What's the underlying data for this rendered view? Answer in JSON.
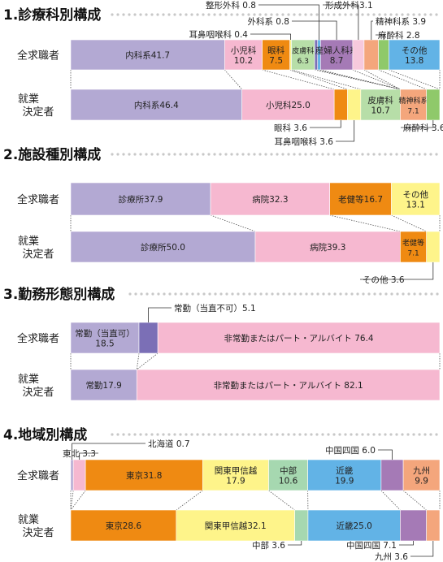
{
  "row_labels": {
    "applicants": "全求職者",
    "placed_line1": "就業",
    "placed_line2": "決定者"
  },
  "colors": {
    "lavender": "#b3a9d3",
    "pink": "#f6b8d0",
    "orange": "#ef8a12",
    "lightgreen": "#b7dea8",
    "purple": "#a57ab6",
    "salmon": "#f4a67c",
    "green": "#8fc96a",
    "blue": "#62b3e6",
    "yellow": "#fef48a",
    "darkpurple": "#7b6fb6",
    "lightpink": "#f7c9dc",
    "tealgreen": "#a6d8b0"
  },
  "chart_data": [
    {
      "type": "stacked-bar",
      "title": "1.診療科別構成",
      "rows": [
        "全求職者",
        "就業決定者"
      ],
      "series": [
        {
          "name": "内科系",
          "values": [
            41.7,
            46.4
          ],
          "color": "#b3a9d3"
        },
        {
          "name": "小児科",
          "values": [
            10.2,
            25.0
          ],
          "color": "#f6b8d0"
        },
        {
          "name": "眼科",
          "values": [
            7.5,
            3.6
          ],
          "color": "#ef8a12"
        },
        {
          "name": "耳鼻咽喉科",
          "values": [
            0.4,
            3.6
          ],
          "color": "#fef48a"
        },
        {
          "name": "皮膚科",
          "values": [
            6.3,
            10.7
          ],
          "color": "#b7dea8"
        },
        {
          "name": "整形外科",
          "values": [
            0.8,
            0
          ],
          "color": "#7b6fb6"
        },
        {
          "name": "外科系",
          "values": [
            0.8,
            0
          ],
          "color": "#62b3e6"
        },
        {
          "name": "産婦人科系",
          "values": [
            8.7,
            0
          ],
          "color": "#a57ab6"
        },
        {
          "name": "形成外科",
          "values": [
            3.1,
            0
          ],
          "color": "#f7c9dc"
        },
        {
          "name": "精神科系",
          "values": [
            3.9,
            7.1
          ],
          "color": "#f4a67c"
        },
        {
          "name": "麻酔科",
          "values": [
            2.8,
            3.6
          ],
          "color": "#8fc96a"
        },
        {
          "name": "その他",
          "values": [
            13.8,
            0
          ],
          "color": "#62b3e6"
        }
      ],
      "segment_labels": {
        "row0": [
          "内科系41.7",
          "小児科\n10.2",
          "眼科\n7.5",
          "",
          "皮膚科\n6.3",
          "",
          "",
          "産婦人科系\n8.7",
          "",
          "",
          "",
          "その他\n13.8"
        ],
        "row1": [
          "内科系46.4",
          "小児科25.0",
          "",
          "",
          "皮膚科\n10.7",
          "",
          "",
          "",
          "",
          "精神科系\n7.1",
          "",
          ""
        ]
      },
      "callouts": [
        "整形外科 0.8",
        "外科系 0.8",
        "耳鼻咽喉科 0.4",
        "形成外科3.1",
        "精神科系 3.9",
        "麻酔科 2.8",
        "眼科 3.6",
        "耳鼻咽喉科 3.6",
        "麻酔科 3.6"
      ]
    },
    {
      "type": "stacked-bar",
      "title": "2.施設種別構成",
      "rows": [
        "全求職者",
        "就業決定者"
      ],
      "series": [
        {
          "name": "診療所",
          "values": [
            37.9,
            50.0
          ],
          "color": "#b3a9d3"
        },
        {
          "name": "病院",
          "values": [
            32.3,
            39.3
          ],
          "color": "#f6b8d0"
        },
        {
          "name": "老健等",
          "values": [
            16.7,
            7.1
          ],
          "color": "#ef8a12"
        },
        {
          "name": "その他",
          "values": [
            13.1,
            3.6
          ],
          "color": "#fef48a"
        }
      ],
      "segment_labels": {
        "row0": [
          "診療所37.9",
          "病院32.3",
          "老健等16.7",
          "その他\n13.1"
        ],
        "row1": [
          "診療所50.0",
          "病院39.3",
          "老健等\n7.1",
          ""
        ]
      },
      "callouts": [
        "その他 3.6"
      ]
    },
    {
      "type": "stacked-bar",
      "title": "3.勤務形態別構成",
      "rows": [
        "全求職者",
        "就業決定者"
      ],
      "series": [
        {
          "name": "常勤（当直可）",
          "values": [
            18.5,
            17.9
          ],
          "color": "#b3a9d3"
        },
        {
          "name": "常勤（当直不可）",
          "values": [
            5.1,
            0
          ],
          "color": "#7b6fb6"
        },
        {
          "name": "非常勤またはパート・アルバイト",
          "values": [
            76.4,
            82.1
          ],
          "color": "#f6b8d0"
        }
      ],
      "segment_labels": {
        "row0": [
          "常勤（当直可）\n18.5",
          "",
          "非常勤またはパート・アルバイト 76.4"
        ],
        "row1": [
          "常勤17.9",
          "",
          "非常勤またはパート・アルバイト 82.1"
        ]
      },
      "callouts": [
        "常勤（当直不可）5.1"
      ]
    },
    {
      "type": "stacked-bar",
      "title": "4.地域別構成",
      "rows": [
        "全求職者",
        "就業決定者"
      ],
      "series": [
        {
          "name": "北海道",
          "values": [
            0.7,
            0
          ],
          "color": "#b3a9d3"
        },
        {
          "name": "東北",
          "values": [
            3.3,
            0
          ],
          "color": "#f6b8d0"
        },
        {
          "name": "東京",
          "values": [
            31.8,
            28.6
          ],
          "color": "#ef8a12"
        },
        {
          "name": "関東甲信越",
          "values": [
            17.9,
            32.1
          ],
          "color": "#fef48a"
        },
        {
          "name": "中部",
          "values": [
            10.6,
            3.6
          ],
          "color": "#a6d8b0"
        },
        {
          "name": "近畿",
          "values": [
            19.9,
            25.0
          ],
          "color": "#62b3e6"
        },
        {
          "name": "中国四国",
          "values": [
            6.0,
            7.1
          ],
          "color": "#a57ab6"
        },
        {
          "name": "九州",
          "values": [
            9.9,
            3.6
          ],
          "color": "#f4a67c"
        }
      ],
      "segment_labels": {
        "row0": [
          "",
          "",
          "東京31.8",
          "関東甲信越\n17.9",
          "中部\n10.6",
          "近畿\n19.9",
          "",
          "九州\n9.9"
        ],
        "row1": [
          "",
          "",
          "東京28.6",
          "関東甲信越32.1",
          "",
          "近畿25.0",
          "",
          ""
        ]
      },
      "callouts": [
        "東北 3.3",
        "北海道 0.7",
        "中国四国 6.0",
        "中部 3.6",
        "中国四国 7.1",
        "九州 3.6"
      ]
    }
  ]
}
